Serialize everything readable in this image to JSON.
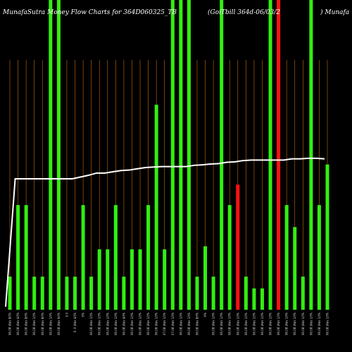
{
  "chart_data": {
    "type": "bar",
    "title_left": "MunafaSutra  Money Flow  Charts for 364D060325_TB",
    "title_mid": "(GoiTbill 364d-06/03/2",
    "title_right": ") Munafa",
    "colors": {
      "background": "#000000",
      "up": "#33ee11",
      "down": "#ff1111",
      "gridline": "#c46a10",
      "line": "#ffffff",
      "text": "#ffffff",
      "tick": "#dddddd"
    },
    "ylim": [
      0,
      100
    ],
    "bar_scale_max": 100,
    "bars": [
      {
        "label": "06.08 (Ads 8/)%",
        "value": 10.7,
        "color": "up"
      },
      {
        "label": "06.08 (Ads 4/)%",
        "value": 33.8,
        "color": "up"
      },
      {
        "label": "06.08 (Ads 8/)%",
        "value": 33.8,
        "color": "up"
      },
      {
        "label": "06.08 (Ads 1/)%",
        "value": 10.7,
        "color": "up"
      },
      {
        "label": "06.08 (Ads 8/)%",
        "value": 10.7,
        "color": "up"
      },
      {
        "label": "06.08 (Ads 1/)%",
        "value": 100,
        "color": "up"
      },
      {
        "label": "06.08 (Ads 9/)%",
        "value": 100,
        "color": "up"
      },
      {
        "label": "0.0",
        "value": 10.7,
        "color": "up"
      },
      {
        "label": "0. 0 (Ads 4/)%",
        "value": 10.7,
        "color": "up"
      },
      {
        "label": "0%",
        "value": 33.8,
        "color": "up"
      },
      {
        "label": "06.08 (Ads 1/)%",
        "value": 10.7,
        "color": "up"
      },
      {
        "label": "06.08 (Ads 1/)%",
        "value": 19.5,
        "color": "up"
      },
      {
        "label": "06.08 (Ads 1/)%",
        "value": 19.5,
        "color": "up"
      },
      {
        "label": "06.08 (Ads 1/)%",
        "value": 33.8,
        "color": "up"
      },
      {
        "label": "06.08 (Ads 4/)%",
        "value": 10.7,
        "color": "up"
      },
      {
        "label": "06.08 (Ads 1/)%",
        "value": 19.5,
        "color": "up"
      },
      {
        "label": "06.08 (Ads 1/)%",
        "value": 19.5,
        "color": "up"
      },
      {
        "label": "06.08 (Ads 1/)%",
        "value": 33.8,
        "color": "up"
      },
      {
        "label": "06.08 (Ads 1/)%",
        "value": 66.2,
        "color": "up"
      },
      {
        "label": "07.08 (Ads 1/)%",
        "value": 19.5,
        "color": "up"
      },
      {
        "label": "07.08 (Ads 1/)%",
        "value": 100,
        "color": "up"
      },
      {
        "label": "06.08 (Ads 1/)%",
        "value": 100,
        "color": "up"
      },
      {
        "label": "06.08 (Ads 1/)%",
        "value": 100,
        "color": "up"
      },
      {
        "label": "06.08 (Ads 8/)%",
        "value": 10.7,
        "color": "up"
      },
      {
        "label": "0%",
        "value": 20.5,
        "color": "up"
      },
      {
        "label": "06.08 (Ads 1/)%",
        "value": 10.7,
        "color": "up"
      },
      {
        "label": "06.08 (Ads 1/)%",
        "value": 100,
        "color": "up"
      },
      {
        "label": "06.08 (Ads 1/)%",
        "value": 33.8,
        "color": "up"
      },
      {
        "label": "06.08 (Ads 1/)%",
        "value": 40.4,
        "color": "down"
      },
      {
        "label": "06.08 (Ads 1/)%",
        "value": 10.7,
        "color": "up"
      },
      {
        "label": "06.08 (Ads 1/)%",
        "value": 6.9,
        "color": "up"
      },
      {
        "label": "06.08 (Ads 1/)%",
        "value": 6.9,
        "color": "up"
      },
      {
        "label": "06.08 (Ads 1/)%",
        "value": 100,
        "color": "up"
      },
      {
        "label": "06.08 (Ads 1/)%",
        "value": 100,
        "color": "down"
      },
      {
        "label": "06.08 (Ads 1/)%",
        "value": 33.8,
        "color": "up"
      },
      {
        "label": "06.08 (Ads 1/)%",
        "value": 26.7,
        "color": "up"
      },
      {
        "label": "06.08 (Ads 1/)%",
        "value": 10.7,
        "color": "up"
      },
      {
        "label": "06.08 (Ads 1/)%",
        "value": 100,
        "color": "up"
      },
      {
        "label": "06.08 (Ads 1/)%",
        "value": 33.8,
        "color": "up"
      },
      {
        "label": "06.08 (Ads 1/)%",
        "value": 46.9,
        "color": "up"
      }
    ],
    "line": [
      1.2,
      52.4,
      52.4,
      52.4,
      52.4,
      52.4,
      52.4,
      52.4,
      52.4,
      53.1,
      53.8,
      54.7,
      54.7,
      55.2,
      55.7,
      55.9,
      56.4,
      56.9,
      57.1,
      57.3,
      57.3,
      57.3,
      57.3,
      57.8,
      58.0,
      58.3,
      58.5,
      59.0,
      59.2,
      59.7,
      59.9,
      59.9,
      59.9,
      59.9,
      59.9,
      60.4,
      60.4,
      60.6,
      60.6,
      60.4
    ]
  }
}
